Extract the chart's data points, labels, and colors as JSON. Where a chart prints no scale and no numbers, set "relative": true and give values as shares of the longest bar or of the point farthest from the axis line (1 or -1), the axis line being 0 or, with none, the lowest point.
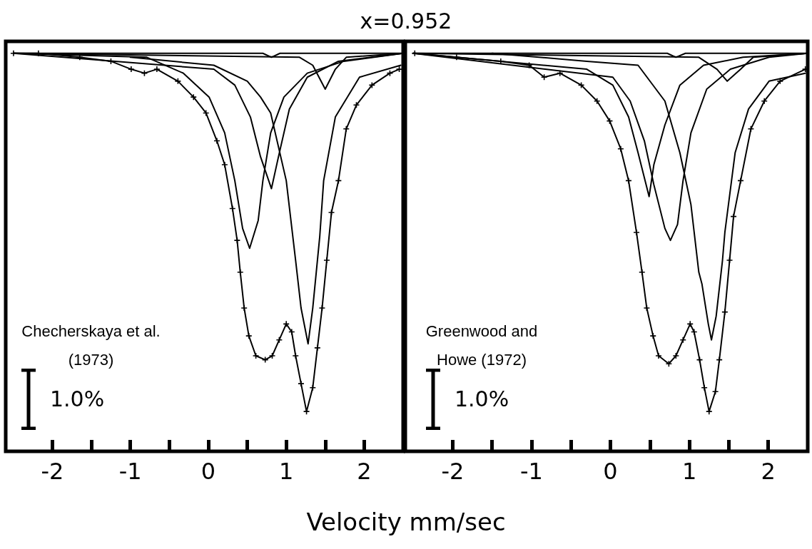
{
  "chart_data": [
    {
      "type": "line",
      "relative": true,
      "title": "x=0.952",
      "xlabel": "Velocity mm/sec",
      "xlim": [
        -2.6,
        2.5
      ],
      "xticks": [
        -2,
        {
          "value": -1.5,
          "label": null
        },
        -1,
        {
          "value": -0.5,
          "label": null
        },
        0,
        {
          "value": 0.5,
          "label": null
        },
        1,
        {
          "value": 1.5,
          "label": null
        },
        2
      ],
      "marker": "none",
      "annotations": [
        "Checherskaya et al. (1973)",
        "1.0%"
      ],
      "series": [
        {
          "color": "#000000",
          "marker": "cross",
          "x": [
            -2.5,
            -2.18,
            -1.65,
            -1.25,
            -0.99,
            -0.82,
            -0.66,
            -0.39,
            -0.19,
            -0.03,
            0.11,
            0.21,
            0.31,
            0.37,
            0.41,
            0.46,
            0.52,
            0.61,
            0.73,
            0.82,
            0.91,
            1.0,
            1.07,
            1.12,
            1.19,
            1.26,
            1.34,
            1.4,
            1.46,
            1.52,
            1.58,
            1.67,
            1.77,
            1.9,
            2.1,
            2.33,
            2.45
          ],
          "values": [
            1.0,
            1.0,
            0.99,
            0.98,
            0.96,
            0.95,
            0.96,
            0.93,
            0.89,
            0.85,
            0.78,
            0.72,
            0.61,
            0.53,
            0.45,
            0.36,
            0.29,
            0.24,
            0.23,
            0.24,
            0.28,
            0.32,
            0.3,
            0.24,
            0.17,
            0.1,
            0.16,
            0.26,
            0.36,
            0.48,
            0.6,
            0.68,
            0.81,
            0.87,
            0.92,
            0.95,
            0.96
          ]
        },
        {
          "color": "#000000",
          "x": [
            -2.5,
            -0.79,
            -0.32,
            0.01,
            0.21,
            0.34,
            0.44,
            0.53,
            0.64,
            0.7,
            0.8,
            0.97,
            1.27,
            1.74,
            2.5
          ],
          "values": [
            1.0,
            0.99,
            0.95,
            0.89,
            0.8,
            0.68,
            0.56,
            0.51,
            0.58,
            0.68,
            0.8,
            0.89,
            0.95,
            0.98,
            1.0
          ]
        },
        {
          "color": "#000000",
          "x": [
            -2.5,
            0.07,
            0.34,
            0.54,
            0.67,
            0.81,
            0.9,
            1.04,
            1.27,
            1.67,
            2.5
          ],
          "values": [
            1.0,
            0.96,
            0.92,
            0.84,
            0.74,
            0.66,
            0.74,
            0.86,
            0.94,
            0.98,
            1.0
          ]
        },
        {
          "color": "#000000",
          "x": [
            -1.0,
            0.07,
            0.5,
            0.67,
            0.8,
            1.0,
            1.12,
            1.19,
            1.28,
            1.34,
            1.43,
            1.48,
            1.63,
            1.94,
            2.47
          ],
          "values": [
            0.99,
            0.97,
            0.93,
            0.89,
            0.85,
            0.68,
            0.48,
            0.36,
            0.27,
            0.36,
            0.54,
            0.68,
            0.84,
            0.94,
            0.97
          ]
        },
        {
          "color": "#000000",
          "x": [
            -2.5,
            1.17,
            1.34,
            1.5,
            1.63,
            1.77,
            2.5
          ],
          "values": [
            1.0,
            0.99,
            0.97,
            0.91,
            0.96,
            0.99,
            1.0
          ]
        },
        {
          "color": "#000000",
          "x": [
            -2.5,
            0.7,
            0.81,
            0.92,
            2.5
          ],
          "values": [
            1.0,
            1.0,
            0.99,
            1.0,
            1.0
          ]
        }
      ]
    },
    {
      "type": "line",
      "relative": true,
      "xlim": [
        -2.6,
        2.5
      ],
      "xticks": [
        -2,
        {
          "value": -1.5,
          "label": null
        },
        -1,
        {
          "value": -0.5,
          "label": null
        },
        0,
        {
          "value": 0.5,
          "label": null
        },
        1,
        {
          "value": 1.5,
          "label": null
        },
        2
      ],
      "marker": "none",
      "annotations": [
        "Greenwood and Howe (1972)",
        "1.0%"
      ],
      "series": [
        {
          "color": "#000000",
          "marker": "cross",
          "x": [
            -2.48,
            -1.95,
            -1.39,
            -1.03,
            -0.84,
            -0.64,
            -0.37,
            -0.17,
            -0.01,
            0.13,
            0.23,
            0.33,
            0.4,
            0.46,
            0.54,
            0.61,
            0.74,
            0.83,
            0.92,
            1.01,
            1.06,
            1.13,
            1.19,
            1.25,
            1.33,
            1.38,
            1.45,
            1.51,
            1.56,
            1.65,
            1.78,
            1.95,
            2.15,
            2.47
          ],
          "values": [
            1.0,
            0.99,
            0.98,
            0.97,
            0.94,
            0.95,
            0.92,
            0.88,
            0.83,
            0.76,
            0.68,
            0.55,
            0.45,
            0.36,
            0.29,
            0.24,
            0.22,
            0.24,
            0.28,
            0.32,
            0.3,
            0.23,
            0.16,
            0.1,
            0.15,
            0.23,
            0.35,
            0.48,
            0.59,
            0.68,
            0.81,
            0.88,
            0.93,
            0.96
          ]
        },
        {
          "color": "#000000",
          "x": [
            -2.5,
            -0.3,
            0.03,
            0.23,
            0.35,
            0.49,
            0.55,
            0.69,
            0.88,
            1.18,
            1.68,
            2.5
          ],
          "values": [
            1.0,
            0.96,
            0.92,
            0.84,
            0.75,
            0.64,
            0.72,
            0.82,
            0.92,
            0.97,
            0.99,
            1.0
          ]
        },
        {
          "color": "#000000",
          "x": [
            -2.5,
            0.03,
            0.25,
            0.43,
            0.55,
            0.69,
            0.76,
            0.85,
            0.92,
            1.02,
            1.22,
            1.52,
            2.01,
            2.5
          ],
          "values": [
            1.0,
            0.94,
            0.88,
            0.78,
            0.67,
            0.56,
            0.53,
            0.57,
            0.68,
            0.8,
            0.91,
            0.96,
            0.99,
            1.0
          ]
        },
        {
          "color": "#000000",
          "x": [
            -1.5,
            -0.3,
            0.35,
            0.69,
            0.88,
            1.02,
            1.12,
            1.16,
            1.24,
            1.28,
            1.34,
            1.42,
            1.45,
            1.58,
            1.75,
            2.01,
            2.47
          ],
          "values": [
            1.0,
            0.98,
            0.97,
            0.88,
            0.75,
            0.62,
            0.45,
            0.42,
            0.32,
            0.28,
            0.34,
            0.48,
            0.55,
            0.75,
            0.86,
            0.93,
            0.95
          ]
        },
        {
          "color": "#000000",
          "x": [
            -2.5,
            1.12,
            1.35,
            1.48,
            1.65,
            1.81,
            2.5
          ],
          "values": [
            1.0,
            0.99,
            0.96,
            0.93,
            0.96,
            0.99,
            1.0
          ]
        },
        {
          "color": "#000000",
          "x": [
            -2.5,
            0.72,
            0.83,
            0.95,
            2.5
          ],
          "values": [
            1.0,
            1.0,
            0.99,
            1.0,
            1.0
          ]
        }
      ]
    }
  ]
}
